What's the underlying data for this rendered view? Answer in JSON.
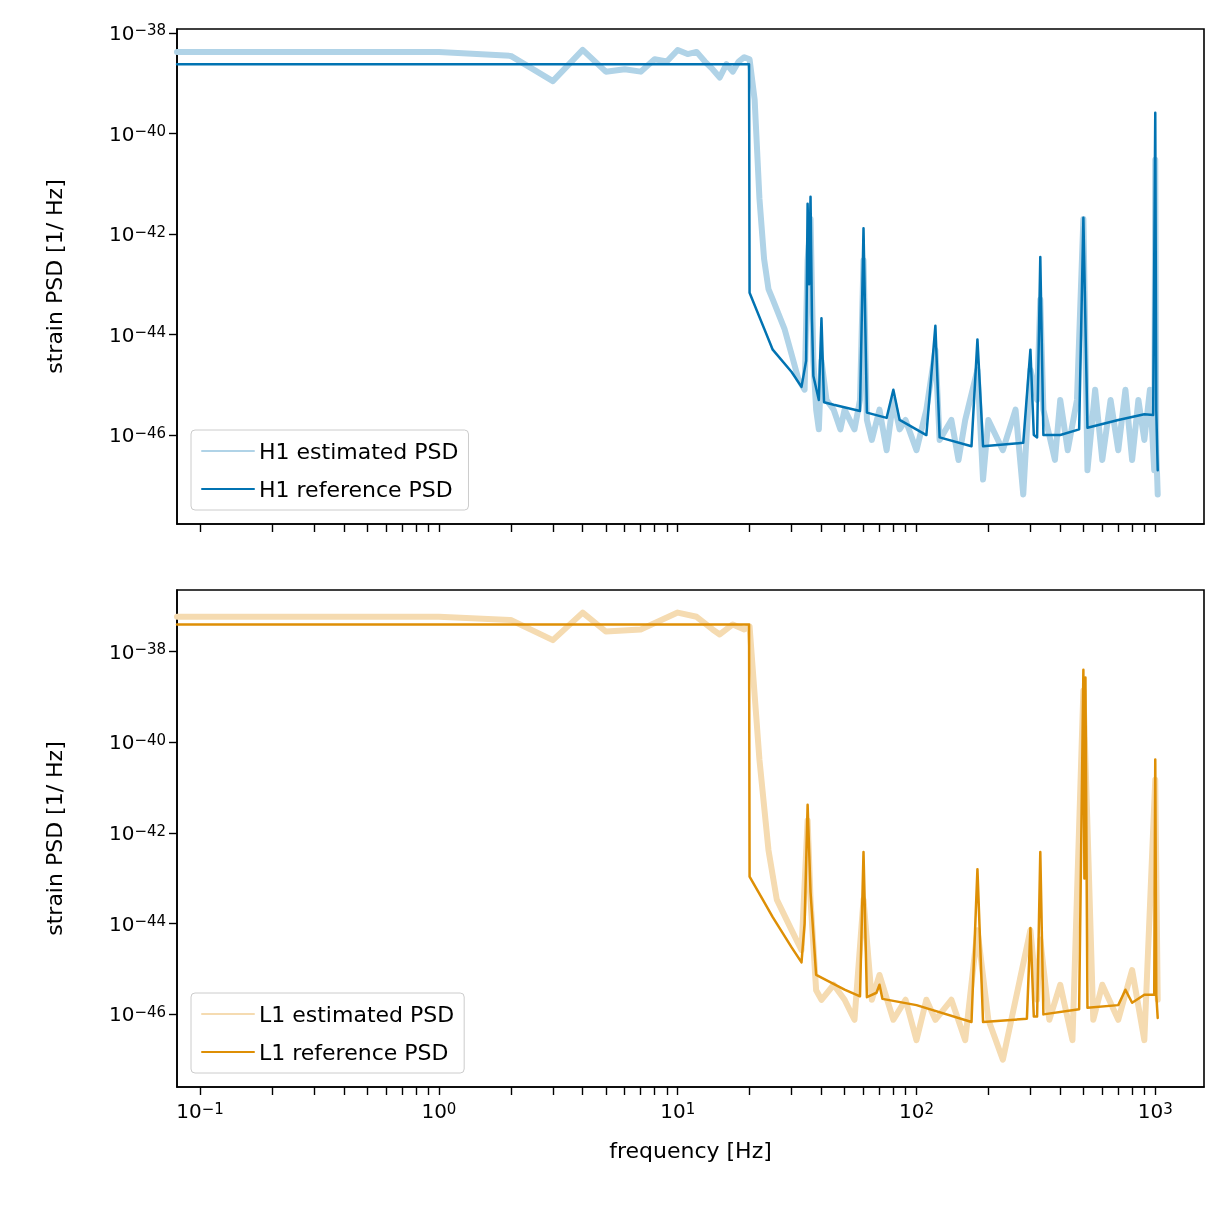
{
  "chart_data": [
    {
      "type": "line",
      "ylabel": "strain PSD [1/ Hz]",
      "log": "xy",
      "marker": "none",
      "legend": "bottom left",
      "tick_labels": "y",
      "xlim": [
        0.08,
        1600
      ],
      "ylim": [
        1.7e-48,
        1.2e-38
      ],
      "xticks": [
        {
          "value": 0.1,
          "label": null
        },
        {
          "value": 0.2,
          "label": null
        },
        {
          "value": 0.3,
          "label": null
        },
        {
          "value": 0.4,
          "label": null
        },
        {
          "value": 0.5,
          "label": null
        },
        {
          "value": 0.6,
          "label": null
        },
        {
          "value": 0.7,
          "label": null
        },
        {
          "value": 0.8,
          "label": null
        },
        {
          "value": 0.9,
          "label": null
        },
        {
          "value": 1,
          "label": null
        },
        {
          "value": 2,
          "label": null
        },
        {
          "value": 3,
          "label": null
        },
        {
          "value": 4,
          "label": null
        },
        {
          "value": 5,
          "label": null
        },
        {
          "value": 6,
          "label": null
        },
        {
          "value": 7,
          "label": null
        },
        {
          "value": 8,
          "label": null
        },
        {
          "value": 9,
          "label": null
        },
        {
          "value": 10,
          "label": null
        },
        {
          "value": 20,
          "label": null
        },
        {
          "value": 30,
          "label": null
        },
        {
          "value": 40,
          "label": null
        },
        {
          "value": 50,
          "label": null
        },
        {
          "value": 60,
          "label": null
        },
        {
          "value": 70,
          "label": null
        },
        {
          "value": 80,
          "label": null
        },
        {
          "value": 90,
          "label": null
        },
        {
          "value": 100,
          "label": null
        },
        {
          "value": 200,
          "label": null
        },
        {
          "value": 300,
          "label": null
        },
        {
          "value": 400,
          "label": null
        },
        {
          "value": 500,
          "label": null
        },
        {
          "value": 600,
          "label": null
        },
        {
          "value": 700,
          "label": null
        },
        {
          "value": 800,
          "label": null
        },
        {
          "value": 900,
          "label": null
        },
        {
          "value": 1000,
          "label": null
        }
      ],
      "yticks": [
        {
          "value": 1e-38,
          "label": "10$^{−38}$"
        },
        {
          "value": 1e-40,
          "label": "10$^{−40}$"
        },
        {
          "value": 1e-42,
          "label": "10$^{−42}$"
        },
        {
          "value": 1e-44,
          "label": "10$^{−44}$"
        },
        {
          "value": 1e-46,
          "label": "10$^{−46}$"
        }
      ],
      "series": [
        {
          "name": "H1 estimated PSD",
          "color": "#b0d3e7",
          "x": [
            0.08,
            1,
            2,
            3,
            4,
            5,
            6,
            7,
            8,
            9,
            10,
            11,
            12,
            13,
            14,
            15,
            16,
            17,
            18,
            19,
            20,
            21,
            22,
            23,
            24,
            25,
            28,
            30,
            32,
            34,
            35,
            36,
            37,
            38,
            39,
            40,
            42,
            45,
            48,
            50,
            55,
            58,
            60,
            62,
            65,
            70,
            75,
            80,
            85,
            90,
            100,
            110,
            120,
            125,
            140,
            150,
            160,
            180,
            190,
            200,
            230,
            260,
            280,
            300,
            320,
            330,
            340,
            380,
            400,
            430,
            470,
            500,
            520,
            560,
            600,
            650,
            700,
            750,
            800,
            850,
            900,
            950,
            990,
            1000,
            1010,
            1024
          ],
          "values": [
            4.2e-39,
            4.2e-39,
            3.5e-39,
            1.1e-39,
            4.6e-39,
            1.7e-39,
            1.9e-39,
            1.7e-39,
            3e-39,
            2.7e-39,
            4.6e-39,
            3.8e-39,
            4.2e-39,
            2.7e-39,
            1.9e-39,
            1.3e-39,
            2.4e-39,
            1.7e-39,
            2.7e-39,
            3.3e-39,
            3e-39,
            4.7e-40,
            5e-42,
            3.2e-43,
            8e-44,
            5e-44,
            1.3e-44,
            4e-45,
            1.3e-45,
            8e-46,
            3e-43,
            2e-42,
            3e-45,
            3.2e-46,
            1.3e-46,
            3e-45,
            5e-46,
            3.2e-46,
            1.3e-46,
            3.2e-46,
            1.3e-46,
            5e-46,
            3e-43,
            2e-46,
            8e-47,
            3.2e-46,
            5e-47,
            5e-46,
            1.3e-46,
            2e-46,
            5e-47,
            3.2e-46,
            5e-45,
            8e-47,
            2e-46,
            3.2e-47,
            2e-46,
            2e-45,
            1.3e-47,
            2e-46,
            5e-47,
            3.2e-46,
            6.6e-48,
            2e-45,
            5e-46,
            5e-44,
            3.2e-46,
            3.2e-47,
            5e-46,
            5e-47,
            5e-46,
            2e-42,
            2e-47,
            8e-46,
            3.2e-47,
            5e-46,
            5e-47,
            8e-46,
            3.2e-47,
            5e-46,
            8e-47,
            8e-46,
            2e-47,
            3e-41,
            5e-47,
            6.6e-48
          ]
        },
        {
          "name": "H1 reference PSD",
          "color": "#0173b2",
          "x": [
            0.08,
            19.9,
            20,
            25,
            30,
            33,
            34.5,
            35,
            35.5,
            36,
            36.5,
            37,
            39,
            40,
            41,
            45,
            58,
            60,
            62,
            75,
            80,
            85,
            110,
            120,
            125,
            170,
            180,
            190,
            280,
            300,
            310,
            320,
            330,
            340,
            400,
            480,
            500,
            520,
            700,
            900,
            980,
            1000,
            1010,
            1024
          ],
          "values": [
            2.4e-39,
            2.4e-39,
            6.8e-44,
            5e-45,
            1.8e-45,
            9.1e-46,
            3e-45,
            4e-42,
            1e-43,
            5.5e-42,
            2e-44,
            1.5e-45,
            5e-46,
            2.1e-44,
            4.5e-46,
            4e-46,
            3e-46,
            1.3e-42,
            2.8e-46,
            2.2e-46,
            8e-46,
            2e-46,
            1e-46,
            1.5e-44,
            9e-47,
            6e-47,
            8e-45,
            6e-47,
            7e-47,
            5e-45,
            1e-46,
            9e-47,
            3.5e-43,
            1e-46,
            1e-46,
            1.3e-46,
            2.1e-42,
            1.4e-46,
            2e-46,
            2.6e-46,
            2.5e-46,
            2.6e-40,
            3e-46,
            2e-47
          ]
        }
      ]
    },
    {
      "type": "line",
      "xlabel": "frequency [Hz]",
      "ylabel": "strain PSD [1/ Hz]",
      "log": "xy",
      "marker": "none",
      "legend": "bottom left",
      "xlim": [
        0.08,
        1600
      ],
      "ylim": [
        2.5e-48,
        2.3e-37
      ],
      "xticks": [
        {
          "value": 0.1,
          "label": "10$^{−1}$"
        },
        {
          "value": 0.2,
          "label": null
        },
        {
          "value": 0.3,
          "label": null
        },
        {
          "value": 0.4,
          "label": null
        },
        {
          "value": 0.5,
          "label": null
        },
        {
          "value": 0.6,
          "label": null
        },
        {
          "value": 0.7,
          "label": null
        },
        {
          "value": 0.8,
          "label": null
        },
        {
          "value": 0.9,
          "label": null
        },
        {
          "value": 1,
          "label": "10$^{0}$"
        },
        {
          "value": 2,
          "label": null
        },
        {
          "value": 3,
          "label": null
        },
        {
          "value": 4,
          "label": null
        },
        {
          "value": 5,
          "label": null
        },
        {
          "value": 6,
          "label": null
        },
        {
          "value": 7,
          "label": null
        },
        {
          "value": 8,
          "label": null
        },
        {
          "value": 9,
          "label": null
        },
        {
          "value": 10,
          "label": "10$^{1}$"
        },
        {
          "value": 20,
          "label": null
        },
        {
          "value": 30,
          "label": null
        },
        {
          "value": 40,
          "label": null
        },
        {
          "value": 50,
          "label": null
        },
        {
          "value": 60,
          "label": null
        },
        {
          "value": 70,
          "label": null
        },
        {
          "value": 80,
          "label": null
        },
        {
          "value": 90,
          "label": null
        },
        {
          "value": 100,
          "label": "10$^{2}$"
        },
        {
          "value": 200,
          "label": null
        },
        {
          "value": 300,
          "label": null
        },
        {
          "value": 400,
          "label": null
        },
        {
          "value": 500,
          "label": null
        },
        {
          "value": 600,
          "label": null
        },
        {
          "value": 700,
          "label": null
        },
        {
          "value": 800,
          "label": null
        },
        {
          "value": 900,
          "label": null
        },
        {
          "value": 1000,
          "label": "10$^{3}$"
        }
      ],
      "yticks": [
        {
          "value": 1e-38,
          "label": "10$^{−38}$"
        },
        {
          "value": 1e-40,
          "label": "10$^{−40}$"
        },
        {
          "value": 1e-42,
          "label": "10$^{−42}$"
        },
        {
          "value": 1e-44,
          "label": "10$^{−44}$"
        },
        {
          "value": 1e-46,
          "label": "10$^{−46}$"
        }
      ],
      "series": [
        {
          "name": "L1 estimated PSD",
          "color": "#f5dbb1",
          "x": [
            0.08,
            1,
            2,
            3,
            4,
            5,
            7,
            10,
            12,
            14,
            15,
            17,
            19,
            20,
            22,
            24,
            26,
            30,
            33,
            35,
            36,
            38,
            40,
            45,
            50,
            55,
            60,
            65,
            70,
            80,
            90,
            100,
            110,
            120,
            140,
            160,
            180,
            200,
            230,
            260,
            300,
            320,
            330,
            360,
            400,
            450,
            500,
            550,
            600,
            700,
            800,
            900,
            1000,
            1024
          ],
          "values": [
            5.9e-38,
            5.9e-38,
            5e-38,
            1.8e-38,
            7.3e-38,
            2.8e-38,
            3.1e-38,
            7.3e-38,
            5.9e-38,
            3.1e-38,
            2.4e-38,
            4e-38,
            3.1e-38,
            3.6e-38,
            4.1e-41,
            4.2e-43,
            3.4e-44,
            7.2e-45,
            2.6e-45,
            1.9e-42,
            3.4e-44,
            3.4e-46,
            2.1e-46,
            4.5e-46,
            2.1e-46,
            7.6e-47,
            3.4e-44,
            2.1e-46,
            7.4e-46,
            7.6e-47,
            2.1e-46,
            2.7e-47,
            2.1e-46,
            7.6e-47,
            2.1e-46,
            2.7e-47,
            7.2e-45,
            7.6e-47,
            1e-47,
            2.1e-46,
            7.2e-45,
            2.1e-46,
            4.5e-45,
            7.6e-47,
            4.5e-46,
            2.7e-47,
            1.4e-39,
            7.6e-47,
            4.5e-46,
            7.6e-47,
            9.5e-46,
            2.7e-47,
            1.5e-41,
            2.1e-46
          ]
        },
        {
          "name": "L1 reference PSD",
          "color": "#de8f05",
          "x": [
            0.08,
            19.9,
            20,
            25,
            30,
            33,
            34,
            35,
            36,
            38,
            50,
            58,
            60,
            62,
            68,
            70,
            72,
            100,
            170,
            180,
            190,
            290,
            300,
            310,
            320,
            330,
            340,
            480,
            500,
            505,
            510,
            520,
            700,
            750,
            800,
            900,
            990,
            1000,
            1010,
            1024
          ],
          "values": [
            4e-38,
            4e-38,
            1.1e-43,
            1.4e-44,
            3e-45,
            1.4e-45,
            1e-44,
            4.2e-42,
            5e-44,
            7.4e-46,
            3.5e-46,
            2.5e-46,
            3.8e-43,
            2.4e-46,
            3e-46,
            4.5e-46,
            2.2e-46,
            1.6e-46,
            6.8e-47,
            1.6e-43,
            6.8e-47,
            8e-47,
            8e-45,
            9e-47,
            9e-47,
            3.8e-43,
            1e-46,
            1.3e-46,
            4e-39,
            1e-43,
            2.7e-39,
            1.4e-46,
            1.6e-46,
            3.5e-46,
            1.8e-46,
            2.7e-46,
            2.7e-46,
            4.2e-41,
            2.7e-46,
            8.3e-47
          ]
        }
      ]
    }
  ]
}
